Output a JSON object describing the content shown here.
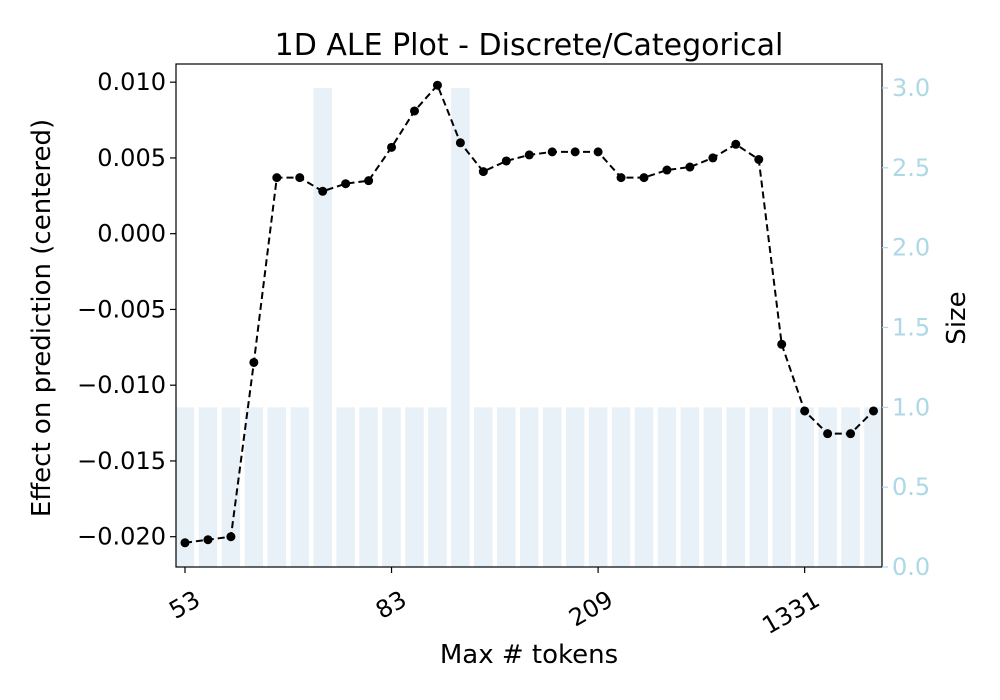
{
  "chart_data": {
    "type": "line",
    "title": "1D ALE Plot - Discrete/Categorical",
    "xlabel": "Max # tokens",
    "ylabel": "Effect on prediction (centered)",
    "y2label": "Size",
    "x_tick_labels": [
      "53",
      "83",
      "209",
      "1331"
    ],
    "x_tick_indices": [
      0,
      9,
      18,
      27
    ],
    "ylim": [
      -0.022,
      0.0112
    ],
    "yticks": [
      0.01,
      0.005,
      0.0,
      -0.005,
      -0.01,
      -0.015,
      -0.02
    ],
    "ytick_labels": [
      "0.010",
      "0.005",
      "0.000",
      "−0.005",
      "−0.010",
      "−0.015",
      "−0.020"
    ],
    "y2lim": [
      0,
      3.15
    ],
    "y2ticks": [
      0.0,
      0.5,
      1.0,
      1.5,
      2.0,
      2.5,
      3.0
    ],
    "y2tick_labels": [
      "0.0",
      "0.5",
      "1.0",
      "1.5",
      "2.0",
      "2.5",
      "3.0"
    ],
    "series": [
      {
        "type": "line",
        "style": "dashed-with-markers",
        "values": [
          -0.0204,
          -0.0202,
          -0.02,
          -0.0085,
          0.0037,
          0.0037,
          0.0028,
          0.0033,
          0.0035,
          0.0057,
          0.0081,
          0.0098,
          0.006,
          0.0041,
          0.0048,
          0.0052,
          0.0054,
          0.0054,
          0.0054,
          0.0037,
          0.0037,
          0.0042,
          0.0044,
          0.005,
          0.0059,
          0.0049,
          -0.0073,
          -0.0117,
          -0.0132,
          -0.0132,
          -0.0117
        ]
      },
      {
        "type": "bar",
        "axis": "right",
        "values": [
          1,
          1,
          1,
          1,
          1,
          1,
          3,
          1,
          1,
          1,
          1,
          1,
          3,
          1,
          1,
          1,
          1,
          1,
          1,
          1,
          1,
          1,
          1,
          1,
          1,
          1,
          1,
          1,
          1,
          1,
          1
        ]
      }
    ],
    "grid": false,
    "colors": {
      "line": "#000000",
      "bars": "#e8f0f8",
      "right_axis": "#add8e6"
    }
  }
}
